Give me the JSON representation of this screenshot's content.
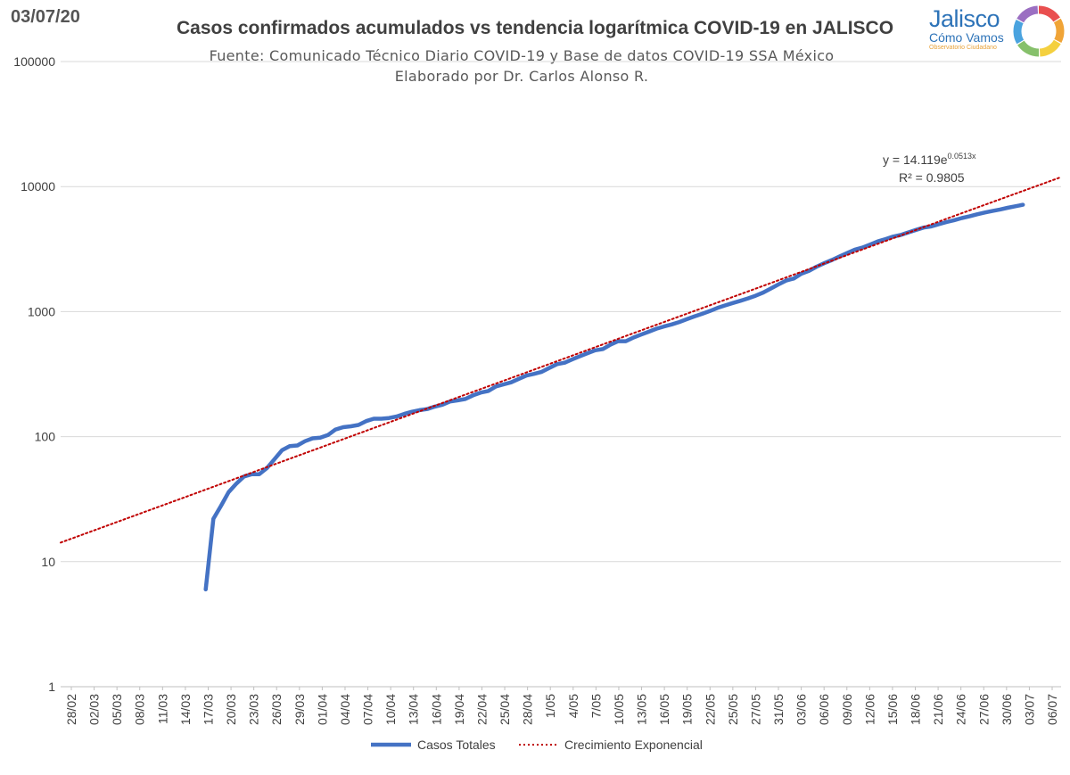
{
  "date_stamp": "03/07/20",
  "logo": {
    "name": "Jalisco",
    "subtitle": "Cómo Vamos",
    "tagline": "Observatorio Ciudadano",
    "ring_colors": [
      "#e94f4f",
      "#f0a437",
      "#f4d03f",
      "#86c06b",
      "#4aa3df",
      "#9b6fc2"
    ]
  },
  "colors": {
    "series_line": "#4472c4",
    "trend_line": "#c00000",
    "grid": "#d9d9d9",
    "axis_text": "#404040"
  },
  "chart_data": {
    "type": "line",
    "title": "Casos confirmados acumulados vs tendencia logarítmica COVID-19 en JALISCO",
    "subtitle_lines": [
      "Fuente: Comunicado Técnico Diario COVID-19 y Base de datos COVID-19 SSA México",
      "Elaborado por Dr. Carlos Alonso R."
    ],
    "y_scale": "log",
    "ylim": [
      1,
      100000
    ],
    "y_ticks": [
      1,
      10,
      100,
      1000,
      10000,
      100000
    ],
    "y_tick_labels": [
      "1",
      "10",
      "100",
      "1000",
      "10000",
      "100000"
    ],
    "x_start": "2020-02-28",
    "x_end": "2020-07-08",
    "x_tick_labels": [
      "28/02",
      "02/03",
      "05/03",
      "08/03",
      "11/03",
      "14/03",
      "17/03",
      "20/03",
      "23/03",
      "26/03",
      "29/03",
      "01/04",
      "04/04",
      "07/04",
      "10/04",
      "13/04",
      "16/04",
      "19/04",
      "22/04",
      "25/04",
      "28/04",
      "1/05",
      "4/05",
      "7/05",
      "10/05",
      "13/05",
      "16/05",
      "19/05",
      "22/05",
      "25/05",
      "27/05",
      "31/05",
      "03/06",
      "06/06",
      "09/06",
      "12/06",
      "15/06",
      "18/06",
      "21/06",
      "24/06",
      "27/06",
      "30/06",
      "03/07",
      "06/07"
    ],
    "grid": true,
    "legend_position": "bottom",
    "series": [
      {
        "name": "Casos Totales",
        "style": "solid",
        "points": [
          [
            "2020-03-18",
            6
          ],
          [
            "2020-03-19",
            22
          ],
          [
            "2020-03-20",
            28
          ],
          [
            "2020-03-21",
            36
          ],
          [
            "2020-03-22",
            42
          ],
          [
            "2020-03-23",
            48
          ],
          [
            "2020-03-24",
            50
          ],
          [
            "2020-03-25",
            50
          ],
          [
            "2020-03-26",
            56
          ],
          [
            "2020-03-27",
            66
          ],
          [
            "2020-03-28",
            78
          ],
          [
            "2020-03-29",
            84
          ],
          [
            "2020-03-30",
            85
          ],
          [
            "2020-03-31",
            92
          ],
          [
            "2020-04-01",
            97
          ],
          [
            "2020-04-02",
            98
          ],
          [
            "2020-04-03",
            103
          ],
          [
            "2020-04-04",
            114
          ],
          [
            "2020-04-05",
            119
          ],
          [
            "2020-04-06",
            121
          ],
          [
            "2020-04-07",
            124
          ],
          [
            "2020-04-08",
            133
          ],
          [
            "2020-04-09",
            139
          ],
          [
            "2020-04-10",
            139
          ],
          [
            "2020-04-11",
            141
          ],
          [
            "2020-04-12",
            145
          ],
          [
            "2020-04-13",
            152
          ],
          [
            "2020-04-14",
            158
          ],
          [
            "2020-04-15",
            163
          ],
          [
            "2020-04-16",
            166
          ],
          [
            "2020-04-17",
            174
          ],
          [
            "2020-04-18",
            180
          ],
          [
            "2020-04-19",
            191
          ],
          [
            "2020-04-20",
            195
          ],
          [
            "2020-04-21",
            200
          ],
          [
            "2020-04-22",
            214
          ],
          [
            "2020-04-23",
            225
          ],
          [
            "2020-04-24",
            232
          ],
          [
            "2020-04-25",
            252
          ],
          [
            "2020-04-26",
            262
          ],
          [
            "2020-04-27",
            272
          ],
          [
            "2020-04-28",
            290
          ],
          [
            "2020-04-29",
            308
          ],
          [
            "2020-04-30",
            318
          ],
          [
            "2020-05-01",
            330
          ],
          [
            "2020-05-02",
            355
          ],
          [
            "2020-05-03",
            380
          ],
          [
            "2020-05-04",
            390
          ],
          [
            "2020-05-05",
            415
          ],
          [
            "2020-05-06",
            440
          ],
          [
            "2020-05-07",
            465
          ],
          [
            "2020-05-08",
            490
          ],
          [
            "2020-05-09",
            502
          ],
          [
            "2020-05-10",
            545
          ],
          [
            "2020-05-11",
            580
          ],
          [
            "2020-05-12",
            580
          ],
          [
            "2020-05-13",
            620
          ],
          [
            "2020-05-14",
            655
          ],
          [
            "2020-05-15",
            690
          ],
          [
            "2020-05-16",
            730
          ],
          [
            "2020-05-17",
            760
          ],
          [
            "2020-05-18",
            790
          ],
          [
            "2020-05-19",
            825
          ],
          [
            "2020-05-20",
            870
          ],
          [
            "2020-05-21",
            915
          ],
          [
            "2020-05-22",
            960
          ],
          [
            "2020-05-23",
            1010
          ],
          [
            "2020-05-24",
            1070
          ],
          [
            "2020-05-25",
            1120
          ],
          [
            "2020-05-26",
            1170
          ],
          [
            "2020-05-27",
            1220
          ],
          [
            "2020-05-28",
            1275
          ],
          [
            "2020-05-29",
            1340
          ],
          [
            "2020-05-30",
            1420
          ],
          [
            "2020-05-31",
            1530
          ],
          [
            "2020-06-01",
            1650
          ],
          [
            "2020-06-02",
            1770
          ],
          [
            "2020-06-03",
            1840
          ],
          [
            "2020-06-04",
            2010
          ],
          [
            "2020-06-05",
            2120
          ],
          [
            "2020-06-06",
            2290
          ],
          [
            "2020-06-07",
            2440
          ],
          [
            "2020-06-08",
            2590
          ],
          [
            "2020-06-09",
            2760
          ],
          [
            "2020-06-10",
            2940
          ],
          [
            "2020-06-11",
            3130
          ],
          [
            "2020-06-12",
            3250
          ],
          [
            "2020-06-13",
            3440
          ],
          [
            "2020-06-14",
            3640
          ],
          [
            "2020-06-15",
            3800
          ],
          [
            "2020-06-16",
            3980
          ],
          [
            "2020-06-17",
            4100
          ],
          [
            "2020-06-18",
            4300
          ],
          [
            "2020-06-19",
            4500
          ],
          [
            "2020-06-20",
            4700
          ],
          [
            "2020-06-21",
            4800
          ],
          [
            "2020-06-22",
            5000
          ],
          [
            "2020-06-23",
            5200
          ],
          [
            "2020-06-24",
            5380
          ],
          [
            "2020-06-25",
            5600
          ],
          [
            "2020-06-26",
            5780
          ],
          [
            "2020-06-27",
            6000
          ],
          [
            "2020-06-28",
            6200
          ],
          [
            "2020-06-29",
            6380
          ],
          [
            "2020-06-30",
            6560
          ],
          [
            "2020-07-01",
            6760
          ],
          [
            "2020-07-02",
            6960
          ],
          [
            "2020-07-03",
            7150
          ]
        ]
      },
      {
        "name": "Crecimiento Exponencial",
        "style": "dotted",
        "points": [
          [
            "2020-02-28",
            14.2
          ],
          [
            "2020-03-14",
            30.7
          ],
          [
            "2020-03-29",
            66.5
          ],
          [
            "2020-04-13",
            144
          ],
          [
            "2020-04-28",
            310
          ],
          [
            "2020-05-13",
            672
          ],
          [
            "2020-05-28",
            1450
          ],
          [
            "2020-06-12",
            3140
          ],
          [
            "2020-06-27",
            6790
          ],
          [
            "2020-07-08",
            11900
          ]
        ]
      }
    ],
    "annotation": {
      "equation_prefix": "y = 14.119e",
      "equation_exponent": "0.0513x",
      "r_squared": "R² = 0.9805"
    }
  }
}
